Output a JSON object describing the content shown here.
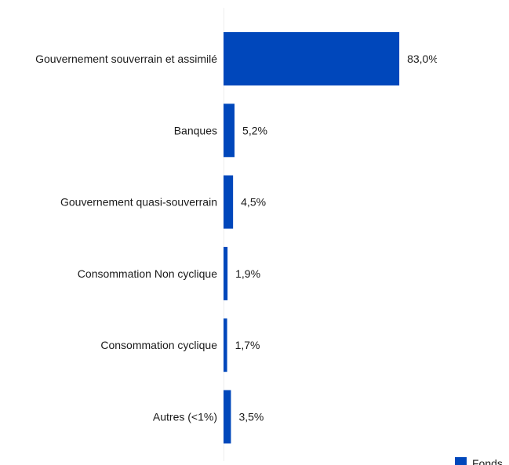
{
  "chart_data": {
    "type": "bar",
    "orientation": "horizontal",
    "categories": [
      "Gouvernement souverrain et assimilé",
      "Banques",
      "Gouvernement quasi-souverrain",
      "Consommation Non cyclique",
      "Consommation cyclique",
      "Autres (<1%)"
    ],
    "series": [
      {
        "name": "Fonds",
        "color": "#0047BB",
        "values": [
          83.0,
          5.2,
          4.5,
          1.9,
          1.7,
          3.5
        ],
        "value_labels": [
          "83,0%",
          "5,2%",
          "4,5%",
          "1,9%",
          "1,7%",
          "3,5%"
        ]
      }
    ],
    "xlim": [
      0,
      100
    ],
    "grid": false,
    "legend_position": "bottom-right"
  }
}
